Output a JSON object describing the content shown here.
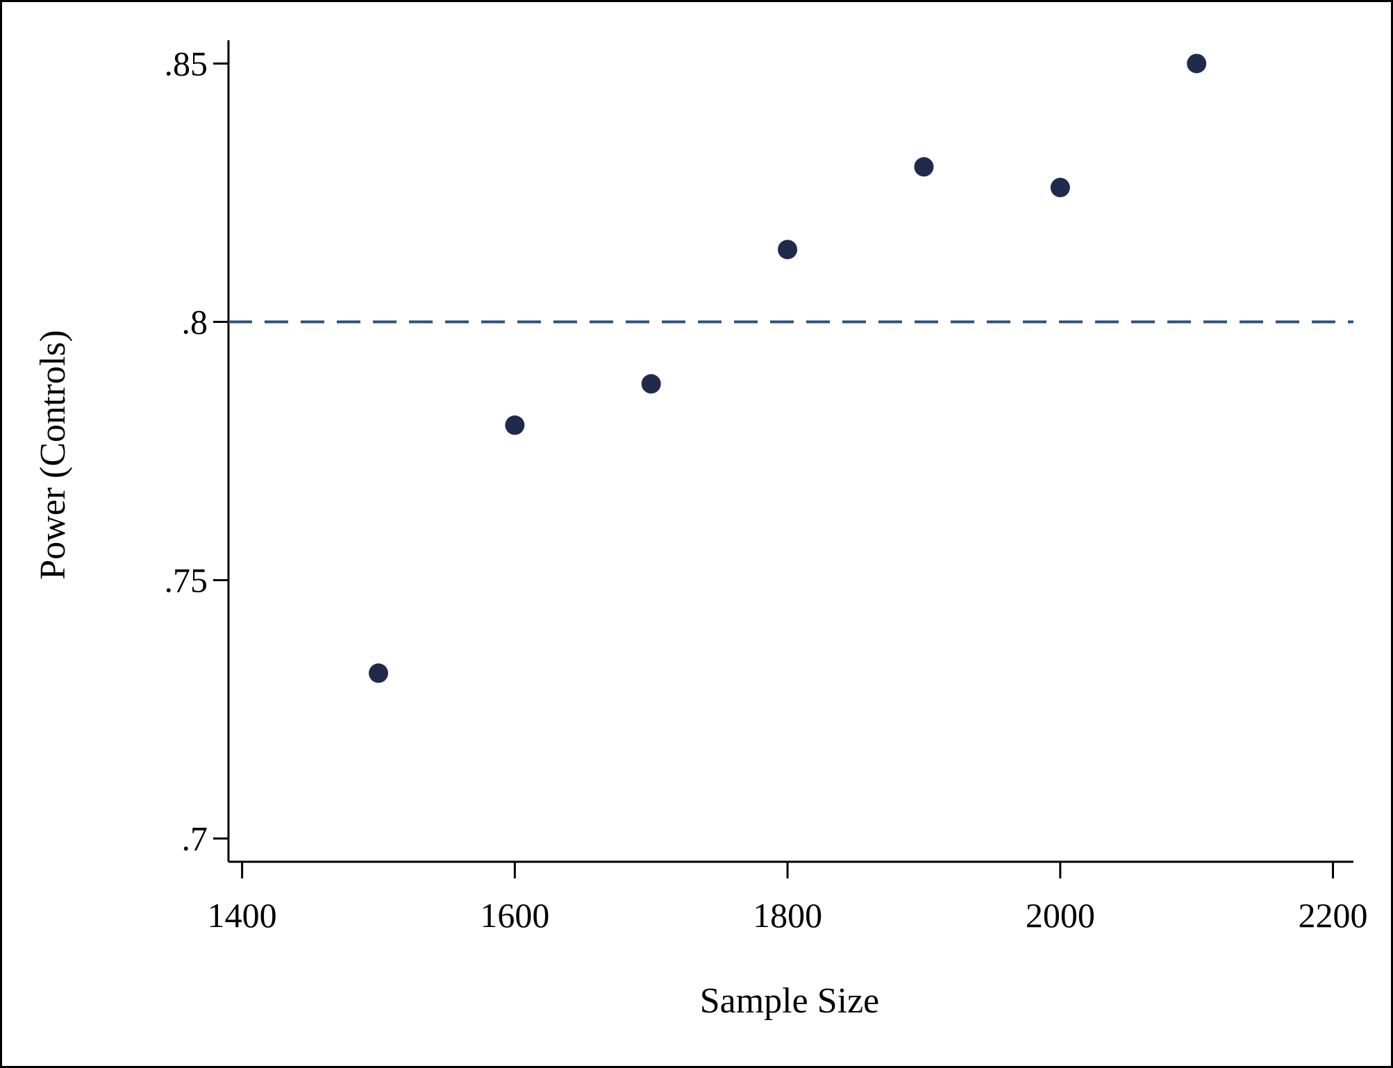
{
  "chart_data": {
    "type": "scatter",
    "title": "",
    "xlabel": "Sample Size",
    "ylabel": "Power (Controls)",
    "xlim": [
      1390,
      2215
    ],
    "ylim": [
      0.6955,
      0.8545
    ],
    "x_ticks": [
      1400,
      1600,
      1800,
      2000,
      2200
    ],
    "x_tick_labels": [
      "1400",
      "1600",
      "1800",
      "2000",
      "2200"
    ],
    "y_ticks": [
      0.7,
      0.75,
      0.8,
      0.85
    ],
    "y_tick_labels": [
      ".7",
      ".75",
      ".8",
      ".85"
    ],
    "grid": false,
    "legend": "none",
    "series": [
      {
        "x": [
          1500,
          1600,
          1700,
          1800,
          1900,
          2000,
          2100
        ],
        "y": [
          0.732,
          0.78,
          0.788,
          0.814,
          0.83,
          0.826,
          0.85
        ]
      }
    ],
    "reference_lines": [
      {
        "orientation": "horizontal",
        "y": 0.8,
        "style": "dashed"
      }
    ],
    "colors": {
      "points": "#1f2a4d",
      "reference_line": "#2c5080",
      "axes": "#000000"
    }
  }
}
